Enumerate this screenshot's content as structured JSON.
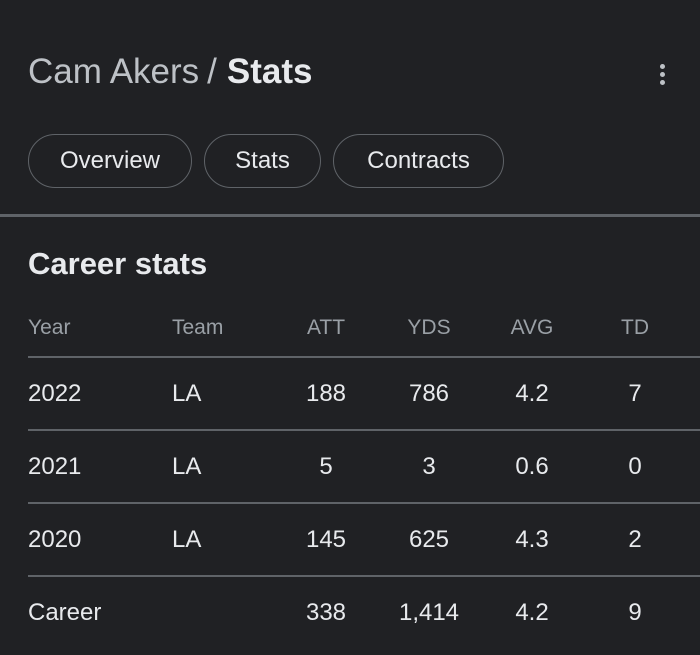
{
  "header": {
    "parent": "Cam Akers",
    "separator": "/",
    "current": "Stats"
  },
  "menu": {
    "icon": "more-vert-icon"
  },
  "tabs": [
    {
      "label": "Overview"
    },
    {
      "label": "Stats"
    },
    {
      "label": "Contracts"
    }
  ],
  "section": {
    "title": "Career stats"
  },
  "table": {
    "columns": [
      "Year",
      "Team",
      "ATT",
      "YDS",
      "AVG",
      "TD"
    ],
    "rows": [
      {
        "year": "2022",
        "team": "LA",
        "att": "188",
        "yds": "786",
        "avg": "4.2",
        "td": "7"
      },
      {
        "year": "2021",
        "team": "LA",
        "att": "5",
        "yds": "3",
        "avg": "0.6",
        "td": "0"
      },
      {
        "year": "2020",
        "team": "LA",
        "att": "145",
        "yds": "625",
        "avg": "4.3",
        "td": "2"
      }
    ],
    "total": {
      "year": "Career",
      "team": "",
      "att": "338",
      "yds": "1,414",
      "avg": "4.2",
      "td": "9"
    }
  },
  "colors": {
    "background": "#202124",
    "link": "#8ab4f8",
    "divider": "#5f6368"
  }
}
